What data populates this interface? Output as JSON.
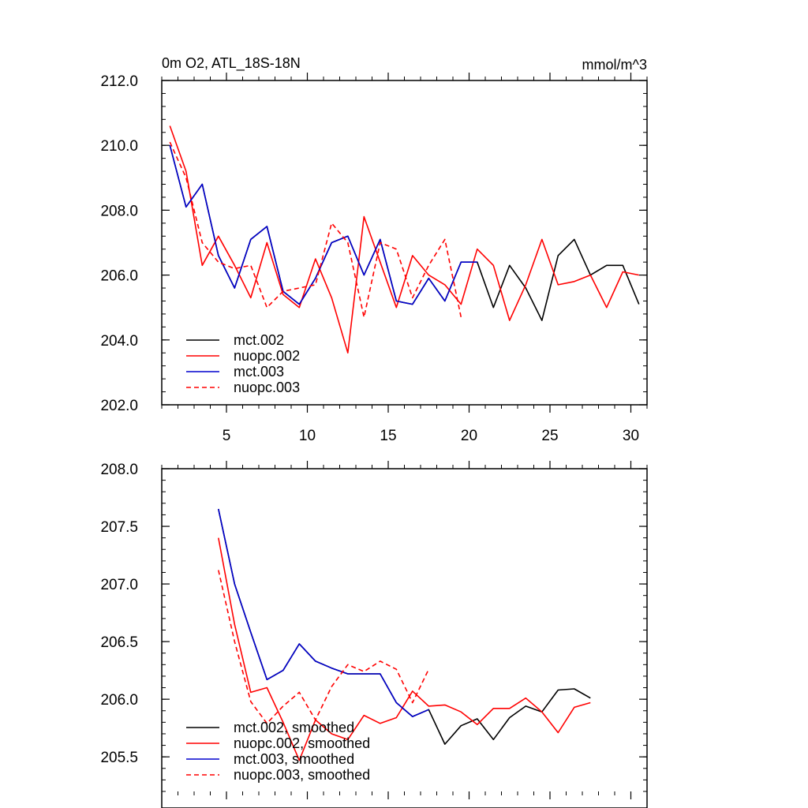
{
  "chart_data": [
    {
      "type": "line",
      "title": "0m O2, ATL_18S-18N",
      "units": "mmol/m^3",
      "xlabel": "",
      "ylabel": "",
      "xlim": [
        1,
        31
      ],
      "ylim": [
        202.0,
        212.0
      ],
      "xticks": [
        5,
        10,
        15,
        20,
        25,
        30
      ],
      "xtick_labels": [
        "5",
        "10",
        "15",
        "20",
        "25",
        "30"
      ],
      "yticks": [
        202.0,
        204.0,
        206.0,
        208.0,
        210.0,
        212.0
      ],
      "ytick_labels": [
        "202.0",
        "204.0",
        "206.0",
        "208.0",
        "210.0",
        "212.0"
      ],
      "legend_position": "bottom-left",
      "series": [
        {
          "name": "mct.002",
          "color": "#000000",
          "dash": "solid",
          "x": [
            1.5,
            2.5,
            3.5,
            4.5,
            5.5,
            6.5,
            7.5,
            8.5,
            9.5,
            10.5,
            11.5,
            12.5,
            13.5,
            14.5,
            15.5,
            16.5,
            17.5,
            18.5,
            19.5,
            20.5,
            21.5,
            22.5,
            23.5,
            24.5,
            25.5,
            26.5,
            27.5,
            28.5,
            29.5,
            30.5
          ],
          "values": [
            210.0,
            208.1,
            208.8,
            206.6,
            205.6,
            207.1,
            207.5,
            205.5,
            205.1,
            205.9,
            207.0,
            207.2,
            206.0,
            207.1,
            205.2,
            205.1,
            205.9,
            205.2,
            206.4,
            206.4,
            205.0,
            206.3,
            205.6,
            204.6,
            206.6,
            207.1,
            206.0,
            206.3,
            206.3,
            205.1
          ]
        },
        {
          "name": "nuopc.002",
          "color": "#ff0000",
          "dash": "solid",
          "x": [
            1.5,
            2.5,
            3.5,
            4.5,
            5.5,
            6.5,
            7.5,
            8.5,
            9.5,
            10.5,
            11.5,
            12.5,
            13.5,
            14.5,
            15.5,
            16.5,
            17.5,
            18.5,
            19.5,
            20.5,
            21.5,
            22.5,
            23.5,
            24.5,
            25.5,
            26.5,
            27.5,
            28.5,
            29.5,
            30.5
          ],
          "values": [
            210.6,
            209.2,
            206.3,
            207.2,
            206.3,
            205.3,
            207.0,
            205.4,
            205.0,
            206.5,
            205.3,
            203.6,
            207.8,
            206.4,
            205.0,
            206.6,
            206.0,
            205.7,
            205.1,
            206.8,
            206.3,
            204.6,
            205.7,
            207.1,
            205.7,
            205.8,
            206.0,
            205.0,
            206.1,
            206.0
          ]
        },
        {
          "name": "mct.003",
          "color": "#0000cd",
          "dash": "solid",
          "x": [
            1.5,
            2.5,
            3.5,
            4.5,
            5.5,
            6.5,
            7.5,
            8.5,
            9.5,
            10.5,
            11.5,
            12.5,
            13.5,
            14.5,
            15.5,
            16.5,
            17.5,
            18.5,
            19.5,
            20.5
          ],
          "values": [
            210.0,
            208.1,
            208.8,
            206.6,
            205.6,
            207.1,
            207.5,
            205.5,
            205.1,
            205.9,
            207.0,
            207.2,
            206.0,
            207.1,
            205.2,
            205.1,
            205.9,
            205.2,
            206.4,
            206.4
          ]
        },
        {
          "name": "nuopc.003",
          "color": "#ff0000",
          "dash": "dashed",
          "x": [
            1.5,
            2.5,
            3.5,
            4.5,
            5.5,
            6.5,
            7.5,
            8.5,
            9.5,
            10.5,
            11.5,
            12.5,
            13.5,
            14.5,
            15.5,
            16.5,
            17.5,
            18.5,
            19.5
          ],
          "values": [
            210.1,
            209.0,
            207.0,
            206.4,
            206.2,
            206.3,
            205.0,
            205.5,
            205.6,
            205.7,
            207.6,
            207.0,
            204.7,
            207.0,
            206.8,
            205.3,
            206.3,
            207.1,
            204.7
          ]
        }
      ]
    },
    {
      "type": "line",
      "title": "",
      "xlabel": "",
      "ylabel": "",
      "xlim": [
        1,
        31
      ],
      "ylim": [
        205.2,
        208.0
      ],
      "xticks": [
        5,
        10,
        15,
        20,
        25,
        30
      ],
      "xtick_labels": [],
      "yticks": [
        205.5,
        206.0,
        206.5,
        207.0,
        207.5,
        208.0
      ],
      "ytick_labels": [
        "205.5",
        "206.0",
        "206.5",
        "207.0",
        "207.5",
        "208.0"
      ],
      "legend_position": "bottom-left",
      "series": [
        {
          "name": "mct.002, smoothed",
          "color": "#000000",
          "dash": "solid",
          "x": [
            4.5,
            5.5,
            6.5,
            7.5,
            8.5,
            9.5,
            10.5,
            11.5,
            12.5,
            13.5,
            14.5,
            15.5,
            16.5,
            17.5,
            18.5,
            19.5,
            20.5,
            21.5,
            22.5,
            23.5,
            24.5,
            25.5,
            26.5,
            27.5
          ],
          "values": [
            207.65,
            207.0,
            206.58,
            206.17,
            206.25,
            206.48,
            206.33,
            206.27,
            206.22,
            206.22,
            206.22,
            205.97,
            205.85,
            205.91,
            205.61,
            205.77,
            205.83,
            205.65,
            205.84,
            205.94,
            205.89,
            206.08,
            206.09,
            206.01
          ]
        },
        {
          "name": "nuopc.002, smoothed",
          "color": "#ff0000",
          "dash": "solid",
          "x": [
            4.5,
            5.5,
            6.5,
            7.5,
            8.5,
            9.5,
            10.5,
            11.5,
            12.5,
            13.5,
            14.5,
            15.5,
            16.5,
            17.5,
            18.5,
            19.5,
            20.5,
            21.5,
            22.5,
            23.5,
            24.5,
            25.5,
            26.5,
            27.5
          ],
          "values": [
            207.4,
            206.65,
            206.06,
            206.1,
            205.8,
            205.47,
            205.82,
            205.7,
            205.65,
            205.86,
            205.79,
            205.84,
            206.07,
            205.94,
            205.95,
            205.89,
            205.78,
            205.92,
            205.92,
            206.01,
            205.89,
            205.71,
            205.93,
            205.97
          ]
        },
        {
          "name": "mct.003, smoothed",
          "color": "#0000cd",
          "dash": "solid",
          "x": [
            4.5,
            5.5,
            6.5,
            7.5,
            8.5,
            9.5,
            10.5,
            11.5,
            12.5,
            13.5,
            14.5,
            15.5,
            16.5,
            17.5
          ],
          "values": [
            207.65,
            207.0,
            206.58,
            206.17,
            206.25,
            206.48,
            206.33,
            206.27,
            206.22,
            206.22,
            206.22,
            205.97,
            205.85,
            205.91
          ]
        },
        {
          "name": "nuopc.003, smoothed",
          "color": "#ff0000",
          "dash": "dashed",
          "x": [
            4.5,
            5.5,
            6.5,
            7.5,
            8.5,
            9.5,
            10.5,
            11.5,
            12.5,
            13.5,
            14.5,
            15.5,
            16.5,
            17.5
          ],
          "values": [
            207.12,
            206.5,
            205.98,
            205.79,
            205.94,
            206.06,
            205.82,
            206.11,
            206.3,
            206.24,
            206.33,
            206.26,
            205.97,
            206.26
          ]
        }
      ]
    }
  ]
}
